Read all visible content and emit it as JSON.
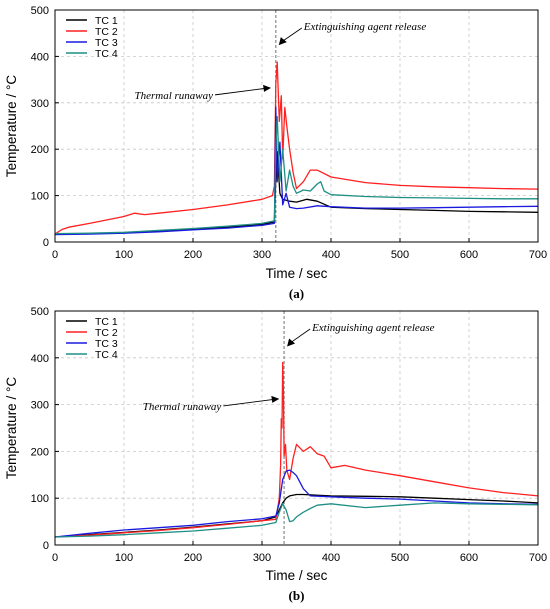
{
  "colors": {
    "TC 1": "#000000",
    "TC 2": "#ff2020",
    "TC 3": "#1a1adf",
    "TC 4": "#1f8f86",
    "grid": "#c8c8c8",
    "marker": "#888888"
  },
  "chart_data": [
    {
      "type": "line",
      "caption": "(a)",
      "xlabel": "Time / sec",
      "ylabel": "Temperature / °C",
      "xlim": [
        0,
        700
      ],
      "ylim": [
        0,
        500
      ],
      "xticks": [
        "0",
        "100",
        "200",
        "300",
        "400",
        "500",
        "600",
        "700"
      ],
      "yticks": [
        "0",
        "100",
        "200",
        "300",
        "400",
        "500"
      ],
      "grid": true,
      "legend_position": "top-left",
      "vertical_marker_x": 320,
      "annotations": [
        {
          "text": "Extinguishing agent release",
          "x": 320,
          "y": 420
        },
        {
          "text": "Thermal runaway",
          "x": 316,
          "y": 330
        }
      ],
      "series": [
        {
          "name": "TC 1",
          "x": [
            0,
            50,
            100,
            150,
            200,
            250,
            300,
            318,
            320,
            322,
            326,
            330,
            340,
            350,
            365,
            380,
            400,
            450,
            500,
            550,
            600,
            650,
            700
          ],
          "y": [
            17,
            18,
            20,
            23,
            27,
            32,
            38,
            43,
            140,
            195,
            105,
            92,
            88,
            86,
            92,
            88,
            75,
            72,
            70,
            68,
            66,
            65,
            64
          ]
        },
        {
          "name": "TC 2",
          "x": [
            0,
            10,
            20,
            50,
            100,
            115,
            130,
            150,
            200,
            250,
            300,
            315,
            318,
            320,
            322,
            325,
            328,
            330,
            333,
            336,
            340,
            345,
            350,
            360,
            370,
            380,
            400,
            450,
            500,
            550,
            600,
            650,
            700
          ],
          "y": [
            17,
            27,
            32,
            40,
            55,
            62,
            59,
            62,
            70,
            80,
            92,
            100,
            120,
            340,
            388,
            260,
            315,
            180,
            290,
            250,
            200,
            150,
            115,
            130,
            155,
            155,
            140,
            128,
            122,
            119,
            117,
            115,
            114
          ]
        },
        {
          "name": "TC 3",
          "x": [
            0,
            50,
            100,
            150,
            200,
            250,
            300,
            318,
            320,
            322,
            326,
            330,
            335,
            340,
            350,
            360,
            380,
            400,
            450,
            500,
            550,
            600,
            650,
            700
          ],
          "y": [
            16,
            17,
            19,
            22,
            26,
            30,
            36,
            40,
            290,
            130,
            215,
            80,
            105,
            75,
            72,
            73,
            78,
            76,
            73,
            73,
            74,
            75,
            76,
            77
          ]
        },
        {
          "name": "TC 4",
          "x": [
            0,
            50,
            100,
            150,
            200,
            250,
            300,
            318,
            320,
            322,
            326,
            330,
            335,
            340,
            345,
            350,
            360,
            370,
            380,
            385,
            390,
            400,
            450,
            500,
            550,
            600,
            650,
            700
          ],
          "y": [
            18,
            19,
            21,
            25,
            29,
            34,
            40,
            46,
            200,
            270,
            130,
            200,
            110,
            155,
            120,
            105,
            112,
            110,
            125,
            130,
            110,
            102,
            98,
            96,
            95,
            94,
            93,
            93
          ]
        }
      ]
    },
    {
      "type": "line",
      "caption": "(b)",
      "xlabel": "Time / sec",
      "ylabel": "Temperature / °C",
      "xlim": [
        0,
        700
      ],
      "ylim": [
        0,
        500
      ],
      "xticks": [
        "0",
        "100",
        "200",
        "300",
        "400",
        "500",
        "600",
        "700"
      ],
      "yticks": [
        "0",
        "100",
        "200",
        "300",
        "400",
        "500"
      ],
      "grid": true,
      "legend_position": "top-left",
      "vertical_marker_x": 332,
      "annotations": [
        {
          "text": "Extinguishing agent release",
          "x": 332,
          "y": 420
        },
        {
          "text": "Thermal runaway",
          "x": 328,
          "y": 310
        }
      ],
      "series": [
        {
          "name": "TC 1",
          "x": [
            0,
            50,
            100,
            150,
            200,
            250,
            300,
            320,
            330,
            335,
            340,
            350,
            360,
            400,
            450,
            500,
            550,
            600,
            650,
            700
          ],
          "y": [
            17,
            22,
            27,
            32,
            38,
            45,
            52,
            60,
            90,
            100,
            105,
            108,
            108,
            105,
            104,
            103,
            100,
            97,
            94,
            90
          ]
        },
        {
          "name": "TC 2",
          "x": [
            0,
            50,
            100,
            150,
            200,
            250,
            300,
            320,
            325,
            327,
            328,
            329,
            330,
            331,
            332,
            334,
            336,
            340,
            345,
            350,
            360,
            370,
            380,
            390,
            400,
            420,
            450,
            500,
            550,
            600,
            650,
            700
          ],
          "y": [
            17,
            21,
            26,
            31,
            37,
            44,
            52,
            55,
            100,
            170,
            270,
            250,
            390,
            330,
            190,
            215,
            160,
            140,
            185,
            215,
            200,
            210,
            195,
            190,
            165,
            170,
            160,
            148,
            135,
            122,
            112,
            105
          ]
        },
        {
          "name": "TC 3",
          "x": [
            0,
            50,
            100,
            150,
            200,
            250,
            300,
            320,
            325,
            330,
            335,
            340,
            345,
            350,
            360,
            370,
            400,
            450,
            500,
            550,
            600,
            650,
            700
          ],
          "y": [
            17,
            25,
            32,
            37,
            42,
            50,
            56,
            62,
            90,
            140,
            158,
            160,
            155,
            148,
            120,
            105,
            103,
            100,
            98,
            94,
            90,
            88,
            87
          ]
        },
        {
          "name": "TC 4",
          "x": [
            0,
            50,
            100,
            150,
            200,
            250,
            300,
            320,
            325,
            330,
            335,
            340,
            345,
            350,
            360,
            370,
            380,
            400,
            450,
            500,
            550,
            600,
            650,
            700
          ],
          "y": [
            17,
            19,
            22,
            26,
            30,
            36,
            42,
            48,
            70,
            88,
            75,
            50,
            52,
            60,
            70,
            78,
            85,
            88,
            80,
            85,
            90,
            88,
            87,
            86
          ]
        }
      ]
    }
  ]
}
